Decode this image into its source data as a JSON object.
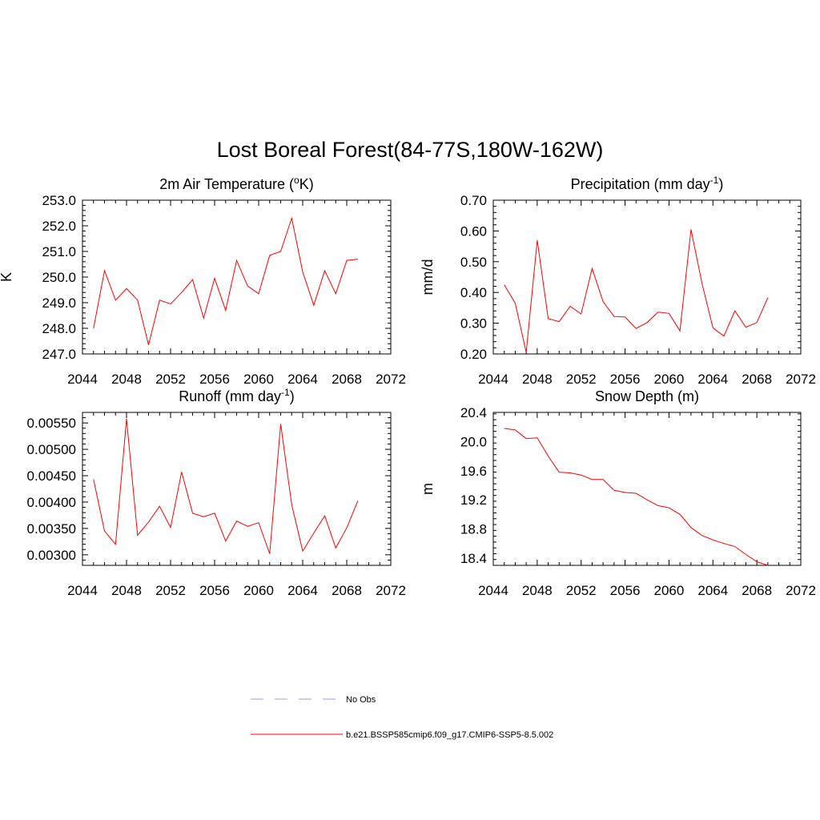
{
  "title": "Lost Boreal Forest(84-77S,180W-162W)",
  "legend": [
    {
      "label": "No Obs",
      "color": "#9999ff",
      "style": "dashed"
    },
    {
      "label": "b.e21.BSSP585cmip6.f09_g17.CMIP6-SSP5-8.5.002",
      "color": "#ff0000",
      "style": "solid"
    }
  ],
  "chart_data": [
    {
      "type": "line",
      "title": "2m Air Temperature (",
      "title_super": "o",
      "title_tail": "K)",
      "ylabel": "K",
      "xlim": [
        2044,
        2072
      ],
      "ylim": [
        247.0,
        253.0
      ],
      "xticks": [
        "2044",
        "2048",
        "2052",
        "2056",
        "2060",
        "2064",
        "2068",
        "2072"
      ],
      "yticks": [
        "247.0",
        "248.0",
        "249.0",
        "250.0",
        "251.0",
        "252.0",
        "253.0"
      ],
      "x": [
        2045,
        2046,
        2047,
        2048,
        2049,
        2050,
        2051,
        2052,
        2053,
        2054,
        2055,
        2056,
        2057,
        2058,
        2059,
        2060,
        2061,
        2062,
        2063,
        2064,
        2065,
        2066,
        2067,
        2068,
        2069
      ],
      "values": [
        248.0,
        250.25,
        249.1,
        249.55,
        249.1,
        247.35,
        249.1,
        248.95,
        249.4,
        249.9,
        248.4,
        249.95,
        248.7,
        250.65,
        249.65,
        249.35,
        250.85,
        251.0,
        252.3,
        250.2,
        248.9,
        250.25,
        249.35,
        250.65,
        250.7
      ],
      "color": "#ff0000"
    },
    {
      "type": "line",
      "title": "Precipitation (mm day",
      "title_super": "-1",
      "title_tail": ")",
      "ylabel": "mm/d",
      "xlim": [
        2044,
        2072
      ],
      "ylim": [
        0.2,
        0.7
      ],
      "xticks": [
        "2044",
        "2048",
        "2052",
        "2056",
        "2060",
        "2064",
        "2068",
        "2072"
      ],
      "yticks": [
        "0.20",
        "0.30",
        "0.40",
        "0.50",
        "0.60",
        "0.70"
      ],
      "x": [
        2045,
        2046,
        2047,
        2048,
        2049,
        2050,
        2051,
        2052,
        2053,
        2054,
        2055,
        2056,
        2057,
        2058,
        2059,
        2060,
        2061,
        2062,
        2063,
        2064,
        2065,
        2066,
        2067,
        2068,
        2069
      ],
      "values": [
        0.425,
        0.365,
        0.205,
        0.57,
        0.315,
        0.305,
        0.355,
        0.33,
        0.478,
        0.37,
        0.322,
        0.32,
        0.283,
        0.302,
        0.336,
        0.332,
        0.275,
        0.605,
        0.43,
        0.285,
        0.258,
        0.34,
        0.287,
        0.302,
        0.383
      ],
      "color": "#ff0000"
    },
    {
      "type": "line",
      "title": "Runoff (mm day",
      "title_super": "-1",
      "title_tail": ")",
      "ylabel": "",
      "xlim": [
        2044,
        2072
      ],
      "ylim": [
        0.0028,
        0.0057
      ],
      "xticks": [
        "2044",
        "2048",
        "2052",
        "2056",
        "2060",
        "2064",
        "2068",
        "2072"
      ],
      "yticks": [
        "0.00300",
        "0.00350",
        "0.00400",
        "0.00450",
        "0.00500",
        "0.00550"
      ],
      "x": [
        2045,
        2046,
        2047,
        2048,
        2049,
        2050,
        2051,
        2052,
        2053,
        2054,
        2055,
        2056,
        2057,
        2058,
        2059,
        2060,
        2061,
        2062,
        2063,
        2064,
        2065,
        2066,
        2067,
        2068,
        2069
      ],
      "values": [
        0.00443,
        0.00345,
        0.0032,
        0.00558,
        0.00337,
        0.00362,
        0.00392,
        0.00352,
        0.00457,
        0.00379,
        0.00372,
        0.00379,
        0.00326,
        0.00364,
        0.00354,
        0.00361,
        0.00302,
        0.00548,
        0.00395,
        0.00307,
        0.00341,
        0.00374,
        0.00313,
        0.00351,
        0.00402
      ],
      "color": "#ff0000"
    },
    {
      "type": "line",
      "title": "Snow Depth (m)",
      "title_super": "",
      "title_tail": "",
      "ylabel": "m",
      "xlim": [
        2044,
        2072
      ],
      "ylim": [
        18.3,
        20.4
      ],
      "xticks": [
        "2044",
        "2048",
        "2052",
        "2056",
        "2060",
        "2064",
        "2068",
        "2072"
      ],
      "yticks": [
        "18.4",
        "18.8",
        "19.2",
        "19.6",
        "20.0",
        "20.4"
      ],
      "x": [
        2045,
        2046,
        2047,
        2048,
        2049,
        2050,
        2051,
        2052,
        2053,
        2054,
        2055,
        2056,
        2057,
        2058,
        2059,
        2060,
        2061,
        2062,
        2063,
        2064,
        2065,
        2066,
        2067,
        2068,
        2069
      ],
      "values": [
        20.18,
        20.16,
        20.04,
        20.05,
        19.8,
        19.58,
        19.57,
        19.54,
        19.48,
        19.48,
        19.33,
        19.3,
        19.29,
        19.2,
        19.12,
        19.09,
        19.0,
        18.82,
        18.71,
        18.65,
        18.6,
        18.56,
        18.45,
        18.35,
        18.3
      ],
      "color": "#ff0000"
    }
  ]
}
